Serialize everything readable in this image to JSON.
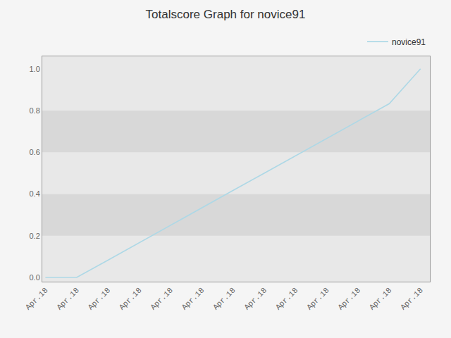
{
  "chart_data": {
    "type": "line",
    "title": "Totalscore Graph for novice91",
    "x": [
      0,
      1,
      2,
      3,
      4,
      5,
      6,
      7,
      8,
      9,
      10,
      11,
      12
    ],
    "series": [
      {
        "name": "novice91",
        "color": "#add8e6",
        "values": [
          0.0,
          0.0,
          0.083,
          0.167,
          0.25,
          0.333,
          0.417,
          0.5,
          0.583,
          0.667,
          0.75,
          0.833,
          1.0
        ]
      }
    ],
    "xlim": [
      -0.1,
      12.3
    ],
    "xticks": [
      {
        "value": 0,
        "label": "Apr.18"
      },
      {
        "value": 1,
        "label": "Apr.18"
      },
      {
        "value": 2,
        "label": "Apr.18"
      },
      {
        "value": 3,
        "label": "Apr.18"
      },
      {
        "value": 4,
        "label": "Apr.18"
      },
      {
        "value": 5,
        "label": "Apr.18"
      },
      {
        "value": 6,
        "label": "Apr.18"
      },
      {
        "value": 7,
        "label": "Apr.18"
      },
      {
        "value": 8,
        "label": "Apr.18"
      },
      {
        "value": 9,
        "label": "Apr.18"
      },
      {
        "value": 10,
        "label": "Apr.18"
      },
      {
        "value": 11,
        "label": "Apr.18"
      },
      {
        "value": 12,
        "label": "Apr.18"
      }
    ],
    "ylim": [
      -0.02,
      1.06
    ],
    "yticks": [
      {
        "value": 0.0,
        "label": "0.0"
      },
      0.2,
      0.4,
      0.6,
      0.8,
      {
        "value": 1.0,
        "label": "1.0"
      }
    ],
    "grid": false,
    "legend": "upper right"
  }
}
